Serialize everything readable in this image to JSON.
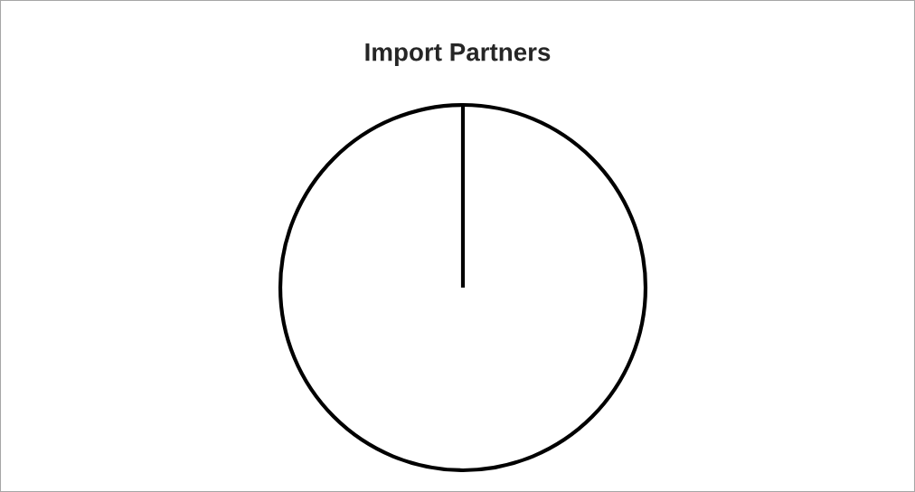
{
  "chart_data": {
    "type": "pie",
    "title": "Import Partners",
    "categories": [
      null
    ],
    "values": [
      100
    ],
    "colors": [
      "#ffffff"
    ]
  }
}
